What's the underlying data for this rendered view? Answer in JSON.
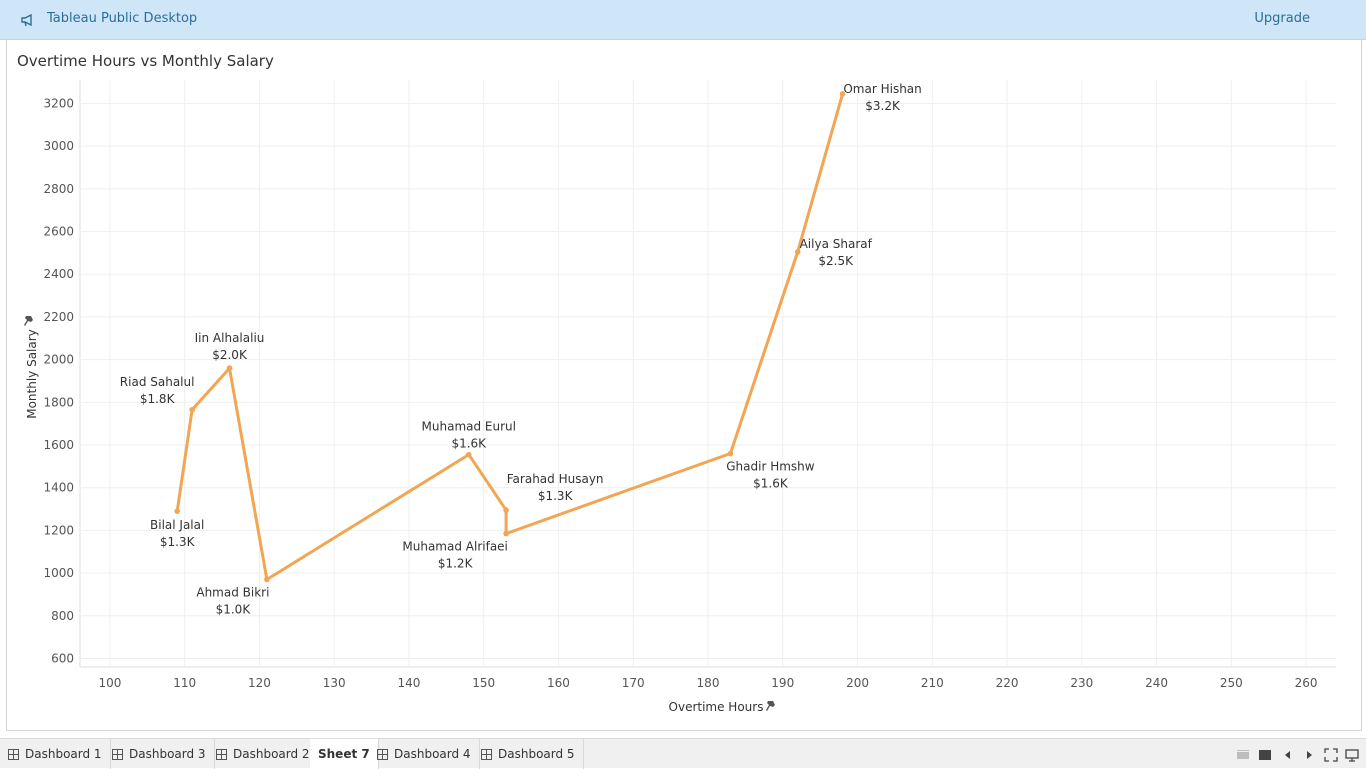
{
  "app": {
    "title": "Tableau Public Desktop",
    "upgrade_label": "Upgrade",
    "icon": "megaphone-icon"
  },
  "sheet": {
    "title": "Overtime Hours vs Monthly Salary"
  },
  "chart_data": {
    "type": "line",
    "title": "Overtime Hours vs Monthly Salary",
    "xlabel": "Overtime Hours",
    "ylabel": "Monthly Salary",
    "xlim": [
      96,
      264
    ],
    "ylim": [
      560,
      3310
    ],
    "xticks": [
      "100",
      "110",
      "120",
      "130",
      "140",
      "150",
      "160",
      "170",
      "180",
      "190",
      "200",
      "210",
      "220",
      "230",
      "240",
      "250",
      "260"
    ],
    "yticks": [
      "600",
      "800",
      "1000",
      "1200",
      "1400",
      "1600",
      "1800",
      "2000",
      "2200",
      "2400",
      "2600",
      "2800",
      "3000",
      "3200"
    ],
    "grid": true,
    "line_color": "#f2a553",
    "points": [
      {
        "name": "Bilal Jalal",
        "x": 109,
        "y": 1290,
        "label_value": "$1.3K"
      },
      {
        "name": "Riad Sahalul",
        "x": 111,
        "y": 1765,
        "label_value": "$1.8K"
      },
      {
        "name": "Iin Alhalaliu",
        "x": 116,
        "y": 1960,
        "label_value": "$2.0K"
      },
      {
        "name": "Ahmad Bikri",
        "x": 121,
        "y": 970,
        "label_value": "$1.0K"
      },
      {
        "name": "Muhamad Eurul",
        "x": 148,
        "y": 1555,
        "label_value": "$1.6K"
      },
      {
        "name": "Farahad Husayn",
        "x": 153,
        "y": 1295,
        "label_value": "$1.3K"
      },
      {
        "name": "Muhamad Alrifaei",
        "x": 153,
        "y": 1185,
        "label_value": "$1.2K"
      },
      {
        "name": "Ghadir Hmshw",
        "x": 183,
        "y": 1560,
        "label_value": "$1.6K"
      },
      {
        "name": "Ailya Sharaf",
        "x": 192,
        "y": 2505,
        "label_value": "$2.5K"
      },
      {
        "name": "Omar Hishan",
        "x": 198,
        "y": 3245,
        "label_value": "$3.2K"
      }
    ]
  },
  "tabs": [
    {
      "label": "Dashboard 1",
      "icon": "dashboard-grid-icon",
      "active": false
    },
    {
      "label": "Dashboard 3",
      "icon": "dashboard-grid-icon",
      "active": false
    },
    {
      "label": "Dashboard 2",
      "icon": "dashboard-grid-icon",
      "active": false
    },
    {
      "label": "Sheet 7",
      "icon": "",
      "active": true
    },
    {
      "label": "Dashboard 4",
      "icon": "dashboard-grid-icon",
      "active": false
    },
    {
      "label": "Dashboard 5",
      "icon": "dashboard-grid-icon",
      "active": false
    }
  ],
  "controls": [
    "film-strip-icon",
    "single-sheet-icon",
    "prev-arrow-icon",
    "next-arrow-icon",
    "fullscreen-icon",
    "presentation-icon"
  ]
}
